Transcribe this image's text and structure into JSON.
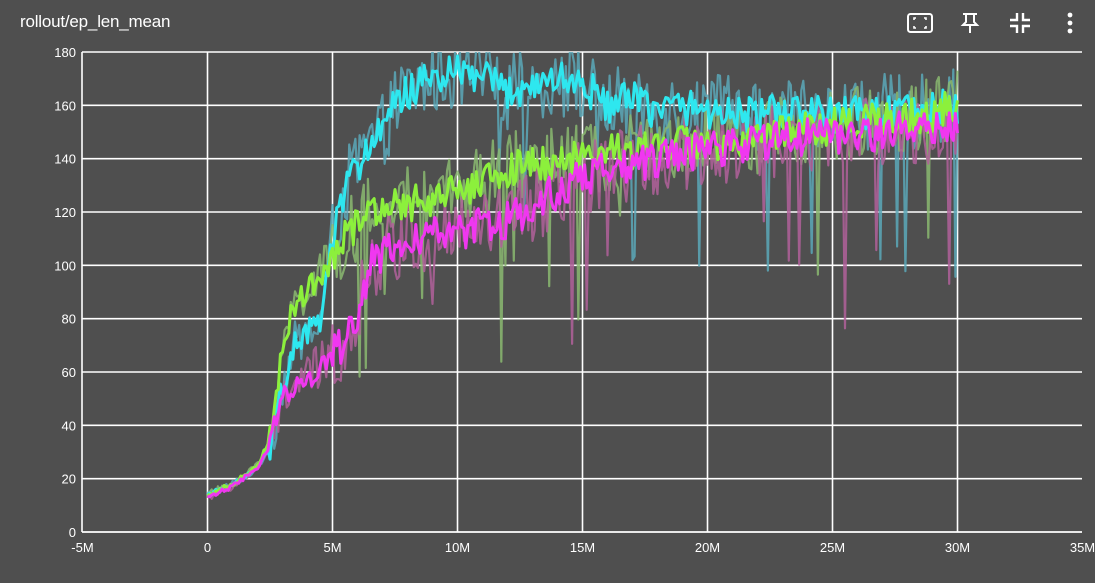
{
  "card": {
    "title": "rollout/ep_len_mean"
  },
  "toolbar": [
    {
      "icon": "fit-domain-icon"
    },
    {
      "icon": "pin-icon"
    },
    {
      "icon": "collapse-icon"
    },
    {
      "icon": "more-vert-icon"
    }
  ],
  "chart_data": {
    "type": "line",
    "title": "rollout/ep_len_mean",
    "xlabel": "",
    "ylabel": "",
    "xlim": [
      -5000000,
      35000000
    ],
    "ylim": [
      0,
      180
    ],
    "grid": true,
    "x_ticks": [
      -5000000,
      0,
      5000000,
      10000000,
      15000000,
      20000000,
      25000000,
      30000000,
      35000000
    ],
    "x_tick_labels": [
      "-5M",
      "0",
      "5M",
      "10M",
      "15M",
      "20M",
      "25M",
      "30M",
      "35M"
    ],
    "y_ticks": [
      0,
      20,
      40,
      60,
      80,
      100,
      120,
      140,
      160,
      180
    ],
    "y_tick_labels": [
      "0",
      "20",
      "40",
      "60",
      "80",
      "100",
      "120",
      "140",
      "160",
      "180"
    ],
    "series": [
      {
        "color": "#2ee7ef",
        "raw_color": "#5aa8b8",
        "x": [
          0,
          1000000,
          2000000,
          2500000,
          3000000,
          3500000,
          4000000,
          4500000,
          5000000,
          5500000,
          6000000,
          6500000,
          7000000,
          7500000,
          8000000,
          9000000,
          10000000,
          11000000,
          12000000,
          13000000,
          14000000,
          15000000,
          16000000,
          17000000,
          18000000,
          19000000,
          20000000,
          21000000,
          22000000,
          23000000,
          24000000,
          25000000,
          26000000,
          27000000,
          28000000,
          29000000,
          30000000
        ],
        "values": [
          14,
          18,
          24,
          32,
          55,
          70,
          75,
          78,
          110,
          128,
          138,
          145,
          150,
          160,
          165,
          170,
          172,
          170,
          165,
          168,
          170,
          168,
          160,
          162,
          158,
          160,
          158,
          157,
          156,
          158,
          157,
          156,
          157,
          158,
          157,
          158,
          160
        ]
      },
      {
        "color": "#8cf03c",
        "raw_color": "#8ab870",
        "x": [
          0,
          1000000,
          2000000,
          2500000,
          3000000,
          3500000,
          4000000,
          4500000,
          5000000,
          5500000,
          6000000,
          6500000,
          7000000,
          7500000,
          8000000,
          9000000,
          10000000,
          11000000,
          12000000,
          13000000,
          14000000,
          15000000,
          16000000,
          17000000,
          18000000,
          19000000,
          20000000,
          21000000,
          22000000,
          23000000,
          24000000,
          25000000,
          26000000,
          27000000,
          28000000,
          29000000,
          30000000
        ],
        "values": [
          14,
          18,
          25,
          35,
          70,
          85,
          92,
          96,
          103,
          110,
          116,
          119,
          121,
          122,
          123,
          125,
          128,
          132,
          136,
          138,
          139,
          140,
          142,
          143,
          144,
          145,
          146,
          147,
          148,
          150,
          151,
          152,
          154,
          155,
          156,
          157,
          160
        ]
      },
      {
        "color": "#f037f0",
        "raw_color": "#b0609a",
        "x": [
          0,
          1000000,
          2000000,
          2500000,
          3000000,
          3500000,
          4000000,
          4500000,
          5000000,
          5500000,
          6000000,
          6500000,
          7000000,
          7500000,
          8000000,
          9000000,
          10000000,
          11000000,
          12000000,
          13000000,
          14000000,
          15000000,
          16000000,
          17000000,
          18000000,
          19000000,
          20000000,
          21000000,
          22000000,
          23000000,
          24000000,
          25000000,
          26000000,
          27000000,
          28000000,
          29000000,
          30000000
        ],
        "values": [
          13,
          17,
          24,
          32,
          52,
          55,
          58,
          62,
          66,
          72,
          82,
          100,
          104,
          108,
          110,
          111,
          112,
          115,
          117,
          122,
          128,
          133,
          136,
          138,
          140,
          142,
          143,
          145,
          146,
          147,
          148,
          148,
          149,
          150,
          151,
          152,
          153
        ]
      }
    ]
  }
}
